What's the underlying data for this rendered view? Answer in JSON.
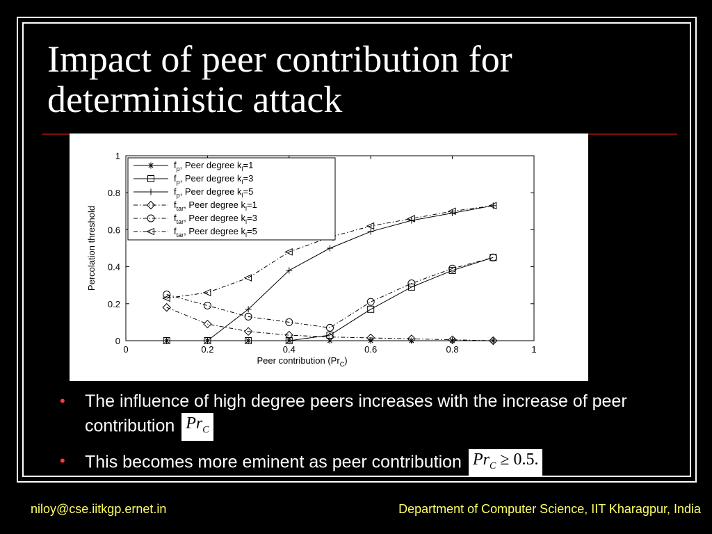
{
  "slide": {
    "title_line1": "Impact of peer contribution for",
    "title_line2": "deterministic attack",
    "bullets": [
      {
        "text": "The influence of high degree peers increases with the increase of peer contribution",
        "math_main": "Pr",
        "math_sub": "C"
      },
      {
        "text": "This becomes more eminent as peer contribution",
        "math_main": "Pr",
        "math_sub": "C",
        "math_rest": " ≥ 0.5."
      }
    ],
    "footer_left": "niloy@cse.iitkgp.ernet.in",
    "footer_right": "Department of Computer Science, IIT Kharagpur, India",
    "colors": {
      "background": "#000000",
      "text": "#ffffff",
      "footer": "#ffff66",
      "bullet": "#ff3b3b",
      "rule": "#7a1010"
    }
  },
  "chart_data": {
    "type": "line",
    "xlabel": "Peer contribution (Pr",
    "xlabel_sub": "C",
    "xlabel_end": ")",
    "ylabel": "Percolation threshold",
    "xlim": [
      0,
      1
    ],
    "ylim": [
      0,
      1
    ],
    "xticks": [
      "0",
      "0.2",
      "0.4",
      "0.6",
      "0.8",
      "1"
    ],
    "yticks": [
      "0",
      "0.2",
      "0.4",
      "0.6",
      "0.8",
      "1"
    ],
    "legend_position": "top-left",
    "x": [
      0.1,
      0.2,
      0.3,
      0.4,
      0.5,
      0.6,
      0.7,
      0.8,
      0.9
    ],
    "series": [
      {
        "name_main": "f",
        "name_sub": "p",
        "name_rest": ", Peer degree k",
        "k_sub": "l",
        "k_val": "=1",
        "marker": "star",
        "dash": "solid",
        "values": [
          0,
          0,
          0,
          0,
          0,
          0,
          0,
          0,
          0
        ]
      },
      {
        "name_main": "f",
        "name_sub": "p",
        "name_rest": ", Peer degree k",
        "k_sub": "l",
        "k_val": "=3",
        "marker": "square",
        "dash": "solid",
        "values": [
          0,
          0,
          0,
          0,
          0.03,
          0.17,
          0.29,
          0.38,
          0.45
        ]
      },
      {
        "name_main": "f",
        "name_sub": "p",
        "name_rest": ", Peer degree k",
        "k_sub": "l",
        "k_val": "=5",
        "marker": "plus",
        "dash": "solid",
        "values": [
          0,
          0,
          0.17,
          0.38,
          0.5,
          0.59,
          0.65,
          0.69,
          0.73
        ]
      },
      {
        "name_main": "f",
        "name_sub": "tar",
        "name_rest": ", Peer degree k",
        "k_sub": "l",
        "k_val": "=1",
        "marker": "diamond",
        "dash": "dashdot",
        "values": [
          0.18,
          0.09,
          0.05,
          0.03,
          0.02,
          0.015,
          0.01,
          0.005,
          0
        ]
      },
      {
        "name_main": "f",
        "name_sub": "tar",
        "name_rest": ", Peer degree k",
        "k_sub": "l",
        "k_val": "=3",
        "marker": "circle",
        "dash": "dashdot",
        "values": [
          0.25,
          0.19,
          0.13,
          0.1,
          0.07,
          0.21,
          0.31,
          0.39,
          0.45
        ]
      },
      {
        "name_main": "f",
        "name_sub": "tar",
        "name_rest": ", Peer degree k",
        "k_sub": "l",
        "k_val": "=5",
        "marker": "triangle-left",
        "dash": "dashdot",
        "values": [
          0.23,
          0.26,
          0.34,
          0.48,
          0.56,
          0.62,
          0.66,
          0.7,
          0.73
        ]
      }
    ]
  }
}
